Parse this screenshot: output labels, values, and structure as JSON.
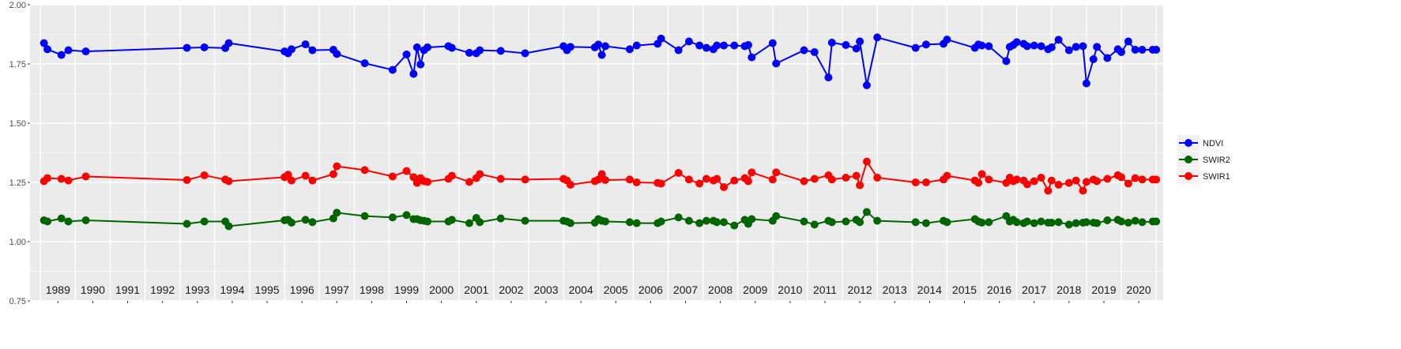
{
  "chart_data": {
    "type": "line",
    "title": "",
    "xlabel": "",
    "ylabel": "",
    "ylim": [
      0.75,
      2.0
    ],
    "xlim": [
      1988.7,
      2021.2
    ],
    "yticks": [
      "0.75",
      "1.00",
      "1.25",
      "1.50",
      "1.75",
      "2.00"
    ],
    "xticks": [
      "1989",
      "1990",
      "1991",
      "1992",
      "1993",
      "1994",
      "1995",
      "1996",
      "1997",
      "1998",
      "1999",
      "2000",
      "2001",
      "2002",
      "2003",
      "2004",
      "2005",
      "2006",
      "2007",
      "2008",
      "2009",
      "2010",
      "2011",
      "2012",
      "2013",
      "2014",
      "2015",
      "2016",
      "2017",
      "2018",
      "2019",
      "2020"
    ],
    "grid": true,
    "legend_position": "right",
    "series": [
      {
        "name": "NDVI",
        "color": "#0000ff",
        "x": [
          1989.1,
          1989.2,
          1989.6,
          1989.8,
          1990.3,
          1993.2,
          1993.7,
          1994.3,
          1994.4,
          1996.0,
          1996.1,
          1996.2,
          1996.6,
          1996.8,
          1997.4,
          1997.5,
          1998.3,
          1999.1,
          1999.5,
          1999.7,
          1999.8,
          1999.9,
          2000.0,
          2000.1,
          2000.7,
          2000.8,
          2001.3,
          2001.5,
          2001.6,
          2002.2,
          2002.9,
          2004.0,
          2004.1,
          2004.2,
          2004.9,
          2005.0,
          2005.1,
          2005.2,
          2005.9,
          2006.1,
          2006.7,
          2006.8,
          2007.3,
          2007.6,
          2007.9,
          2008.1,
          2008.3,
          2008.4,
          2008.6,
          2008.9,
          2009.2,
          2009.3,
          2009.4,
          2010.0,
          2010.1,
          2010.9,
          2011.2,
          2011.6,
          2011.7,
          2012.1,
          2012.4,
          2012.5,
          2012.7,
          2013.0,
          2014.1,
          2014.4,
          2014.9,
          2015.0,
          2015.8,
          2015.9,
          2016.0,
          2016.2,
          2016.7,
          2016.8,
          2016.9,
          2017.0,
          2017.2,
          2017.3,
          2017.5,
          2017.7,
          2017.9,
          2018.0,
          2018.2,
          2018.5,
          2018.7,
          2018.9,
          2019.0,
          2019.2,
          2019.3,
          2019.6,
          2019.9,
          2020.0,
          2020.2,
          2020.4,
          2020.6,
          2020.9,
          2021.0
        ],
        "y": [
          1.838,
          1.812,
          1.788,
          1.808,
          1.803,
          1.818,
          1.82,
          1.817,
          1.838,
          1.803,
          1.795,
          1.812,
          1.833,
          1.808,
          1.81,
          1.792,
          1.753,
          1.725,
          1.79,
          1.708,
          1.82,
          1.748,
          1.808,
          1.82,
          1.825,
          1.818,
          1.797,
          1.795,
          1.808,
          1.805,
          1.795,
          1.825,
          1.808,
          1.822,
          1.82,
          1.832,
          1.788,
          1.825,
          1.812,
          1.828,
          1.835,
          1.857,
          1.808,
          1.845,
          1.828,
          1.818,
          1.812,
          1.828,
          1.828,
          1.828,
          1.825,
          1.83,
          1.778,
          1.838,
          1.752,
          1.808,
          1.8,
          1.693,
          1.84,
          1.83,
          1.815,
          1.845,
          1.66,
          1.862,
          1.818,
          1.832,
          1.835,
          1.853,
          1.818,
          1.832,
          1.828,
          1.825,
          1.762,
          1.822,
          1.83,
          1.842,
          1.835,
          1.825,
          1.828,
          1.825,
          1.812,
          1.82,
          1.852,
          1.808,
          1.822,
          1.825,
          1.668,
          1.77,
          1.822,
          1.775,
          1.812,
          1.8,
          1.845,
          1.81,
          1.81,
          1.81,
          1.81
        ]
      },
      {
        "name": "SWIR2",
        "color": "#006400",
        "x": [
          1989.1,
          1989.2,
          1989.6,
          1989.8,
          1990.3,
          1993.2,
          1993.7,
          1994.3,
          1994.4,
          1996.0,
          1996.1,
          1996.2,
          1996.6,
          1996.8,
          1997.4,
          1997.5,
          1998.3,
          1999.1,
          1999.5,
          1999.7,
          1999.8,
          1999.9,
          2000.0,
          2000.1,
          2000.7,
          2000.8,
          2001.3,
          2001.5,
          2001.6,
          2002.2,
          2002.9,
          2004.0,
          2004.1,
          2004.2,
          2004.9,
          2005.0,
          2005.1,
          2005.2,
          2005.9,
          2006.1,
          2006.7,
          2006.8,
          2007.3,
          2007.6,
          2007.9,
          2008.1,
          2008.3,
          2008.4,
          2008.6,
          2008.9,
          2009.2,
          2009.3,
          2009.4,
          2010.0,
          2010.1,
          2010.9,
          2011.2,
          2011.6,
          2011.7,
          2012.1,
          2012.4,
          2012.5,
          2012.7,
          2013.0,
          2014.1,
          2014.4,
          2014.9,
          2015.0,
          2015.8,
          2015.9,
          2016.0,
          2016.2,
          2016.7,
          2016.8,
          2016.9,
          2017.0,
          2017.2,
          2017.3,
          2017.5,
          2017.7,
          2017.9,
          2018.0,
          2018.2,
          2018.5,
          2018.7,
          2018.9,
          2019.0,
          2019.2,
          2019.3,
          2019.6,
          2019.9,
          2020.0,
          2020.2,
          2020.4,
          2020.6,
          2020.9,
          2021.0
        ],
        "y": [
          1.09,
          1.085,
          1.098,
          1.085,
          1.09,
          1.075,
          1.085,
          1.085,
          1.065,
          1.09,
          1.092,
          1.08,
          1.092,
          1.082,
          1.098,
          1.122,
          1.108,
          1.102,
          1.112,
          1.095,
          1.095,
          1.09,
          1.088,
          1.085,
          1.085,
          1.092,
          1.078,
          1.1,
          1.082,
          1.098,
          1.088,
          1.088,
          1.085,
          1.078,
          1.08,
          1.095,
          1.088,
          1.085,
          1.082,
          1.078,
          1.078,
          1.085,
          1.102,
          1.088,
          1.078,
          1.088,
          1.088,
          1.082,
          1.082,
          1.068,
          1.092,
          1.075,
          1.095,
          1.088,
          1.108,
          1.085,
          1.072,
          1.088,
          1.082,
          1.085,
          1.092,
          1.082,
          1.125,
          1.088,
          1.082,
          1.078,
          1.088,
          1.082,
          1.095,
          1.085,
          1.08,
          1.082,
          1.108,
          1.085,
          1.092,
          1.082,
          1.078,
          1.085,
          1.078,
          1.085,
          1.08,
          1.08,
          1.082,
          1.072,
          1.078,
          1.08,
          1.082,
          1.08,
          1.078,
          1.09,
          1.092,
          1.085,
          1.08,
          1.088,
          1.082,
          1.085,
          1.085
        ]
      },
      {
        "name": "SWIR1",
        "color": "#ff0000",
        "x": [
          1989.1,
          1989.2,
          1989.6,
          1989.8,
          1990.3,
          1993.2,
          1993.7,
          1994.3,
          1994.4,
          1996.0,
          1996.1,
          1996.2,
          1996.6,
          1996.8,
          1997.4,
          1997.5,
          1998.3,
          1999.1,
          1999.5,
          1999.7,
          1999.8,
          1999.9,
          2000.0,
          2000.1,
          2000.7,
          2000.8,
          2001.3,
          2001.5,
          2001.6,
          2002.2,
          2002.9,
          2004.0,
          2004.1,
          2004.2,
          2004.9,
          2005.0,
          2005.1,
          2005.2,
          2005.9,
          2006.1,
          2006.7,
          2006.8,
          2007.3,
          2007.6,
          2007.9,
          2008.1,
          2008.3,
          2008.4,
          2008.6,
          2008.9,
          2009.2,
          2009.3,
          2009.4,
          2010.0,
          2010.1,
          2010.9,
          2011.2,
          2011.6,
          2011.7,
          2012.1,
          2012.4,
          2012.5,
          2012.7,
          2013.0,
          2014.1,
          2014.4,
          2014.9,
          2015.0,
          2015.8,
          2015.9,
          2016.0,
          2016.2,
          2016.7,
          2016.8,
          2016.9,
          2017.0,
          2017.2,
          2017.3,
          2017.5,
          2017.7,
          2017.9,
          2018.0,
          2018.2,
          2018.5,
          2018.7,
          2018.9,
          2019.0,
          2019.2,
          2019.3,
          2019.6,
          2019.9,
          2020.0,
          2020.2,
          2020.4,
          2020.6,
          2020.9,
          2021.0
        ],
        "y": [
          1.255,
          1.268,
          1.265,
          1.258,
          1.275,
          1.26,
          1.28,
          1.262,
          1.255,
          1.272,
          1.282,
          1.258,
          1.278,
          1.258,
          1.285,
          1.318,
          1.302,
          1.275,
          1.298,
          1.272,
          1.248,
          1.268,
          1.255,
          1.252,
          1.265,
          1.278,
          1.252,
          1.268,
          1.285,
          1.265,
          1.262,
          1.265,
          1.258,
          1.24,
          1.255,
          1.262,
          1.285,
          1.26,
          1.262,
          1.25,
          1.248,
          1.245,
          1.29,
          1.262,
          1.245,
          1.265,
          1.258,
          1.265,
          1.23,
          1.258,
          1.268,
          1.255,
          1.292,
          1.262,
          1.292,
          1.255,
          1.265,
          1.28,
          1.262,
          1.27,
          1.278,
          1.238,
          1.338,
          1.27,
          1.25,
          1.25,
          1.262,
          1.278,
          1.258,
          1.248,
          1.285,
          1.262,
          1.248,
          1.27,
          1.255,
          1.262,
          1.258,
          1.242,
          1.255,
          1.27,
          1.215,
          1.258,
          1.24,
          1.248,
          1.258,
          1.215,
          1.252,
          1.262,
          1.255,
          1.265,
          1.28,
          1.272,
          1.245,
          1.268,
          1.262,
          1.262,
          1.262
        ]
      }
    ]
  }
}
